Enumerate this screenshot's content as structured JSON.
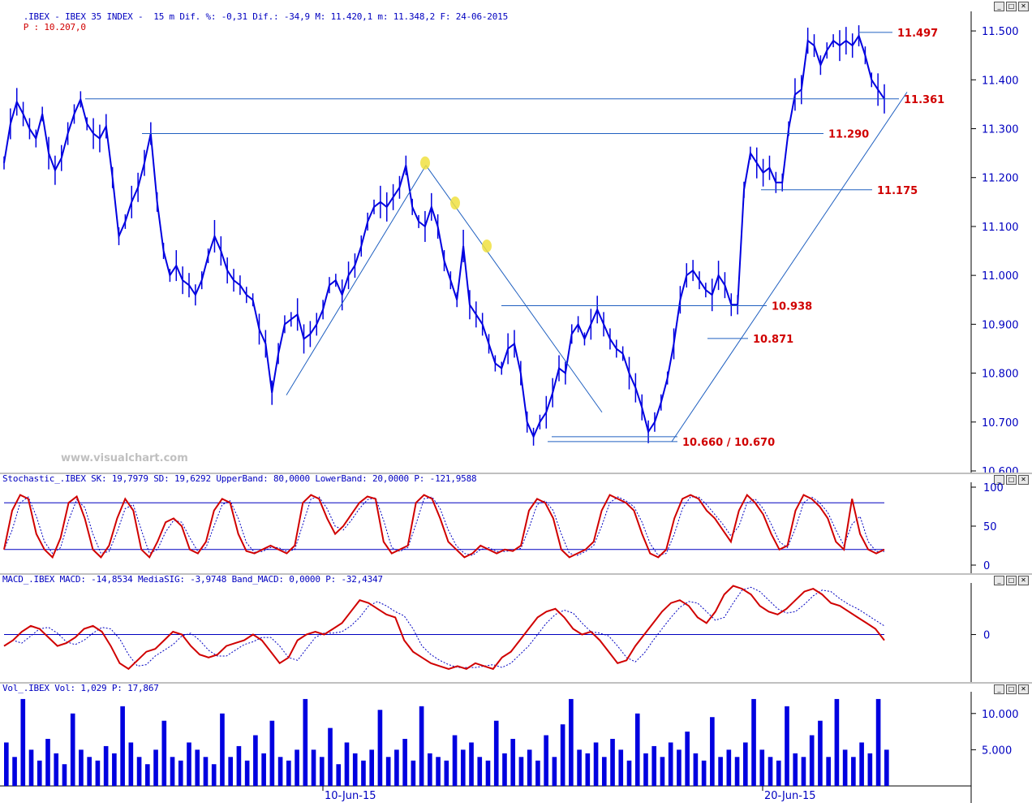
{
  "header": {
    "title": ".IBEX - IBEX 35 INDEX -  15 m Dif. %: -0,31 Dif.: -34,9 M: 11.420,1 m: 11.348,2 F: 24-06-2015",
    "price": "P : 10.207,0"
  },
  "watermark": "www.visualchart.com",
  "colors": {
    "price": "#0000e0",
    "indicator": "#d00000",
    "guide": "#2060c0",
    "level_text": "#d00000",
    "marker": "#f0e040"
  },
  "chart_data": [
    {
      "type": "line",
      "name": "price",
      "ylim": [
        10600,
        11540
      ],
      "y_ticks": [
        "11.500",
        "11.400",
        "11.300",
        "11.200",
        "11.100",
        "11.000",
        "10.900",
        "10.800",
        "10.700",
        "10.600"
      ],
      "x_labels": [
        "10-Jun-15",
        "20-Jun-15"
      ],
      "series": [
        {
          "values": [
            11230,
            11310,
            11355,
            11330,
            11300,
            11280,
            11330,
            11250,
            11215,
            11240,
            11290,
            11330,
            11360,
            11310,
            11290,
            11280,
            11305,
            11200,
            11080,
            11110,
            11150,
            11180,
            11230,
            11290,
            11150,
            11050,
            11000,
            11020,
            10990,
            10980,
            10960,
            10990,
            11040,
            11080,
            11050,
            11010,
            10990,
            10980,
            10960,
            10950,
            10890,
            10860,
            10760,
            10840,
            10900,
            10910,
            10920,
            10870,
            10880,
            10900,
            10930,
            10980,
            10990,
            10960,
            11000,
            11020,
            11060,
            11110,
            11140,
            11150,
            11140,
            11160,
            11180,
            11225,
            11140,
            11110,
            11100,
            11140,
            11100,
            11030,
            10990,
            10950,
            11060,
            10940,
            10920,
            10900,
            10860,
            10820,
            10810,
            10850,
            10860,
            10800,
            10700,
            10670,
            10700,
            10720,
            10760,
            10810,
            10800,
            10880,
            10900,
            10870,
            10900,
            10930,
            10900,
            10870,
            10850,
            10840,
            10800,
            10770,
            10730,
            10680,
            10700,
            10740,
            10790,
            10860,
            10950,
            11000,
            11010,
            10990,
            10970,
            10960,
            11000,
            10980,
            10940,
            10940,
            11175,
            11250,
            11230,
            11210,
            11220,
            11190,
            11190,
            11300,
            11370,
            11380,
            11480,
            11470,
            11430,
            11460,
            11480,
            11470,
            11480,
            11470,
            11490,
            11450,
            11400,
            11380,
            11361
          ],
          "x_start": "",
          "x_end": ""
        }
      ],
      "levels": [
        {
          "label": "11.497",
          "value": 11497
        },
        {
          "label": "11.361",
          "value": 11361
        },
        {
          "label": "11.290",
          "value": 11290
        },
        {
          "label": "11.175",
          "value": 11175
        },
        {
          "label": "10.938",
          "value": 10938
        },
        {
          "label": "10.871",
          "value": 10871
        },
        {
          "label": "10.660 / 10.670",
          "value": 10660
        }
      ]
    },
    {
      "type": "line",
      "name": "stochastic",
      "title": "Stochastic_.IBEX SK: 19,7979 SD: 19,6292 UpperBand: 80,0000 LowerBand: 20,0000 P: -121,9588",
      "ylim": [
        0,
        100
      ],
      "y_ticks": [
        "100",
        "50",
        "0"
      ],
      "bands": [
        80,
        20
      ],
      "series": [
        {
          "values": [
            20,
            70,
            90,
            85,
            40,
            20,
            10,
            35,
            80,
            88,
            60,
            20,
            10,
            25,
            60,
            85,
            70,
            20,
            10,
            30,
            55,
            60,
            50,
            20,
            15,
            30,
            70,
            85,
            80,
            40,
            18,
            15,
            20,
            25,
            20,
            15,
            25,
            80,
            90,
            85,
            60,
            40,
            50,
            65,
            80,
            88,
            85,
            30,
            15,
            20,
            25,
            80,
            90,
            85,
            60,
            30,
            20,
            10,
            15,
            25,
            20,
            15,
            20,
            18,
            25,
            70,
            85,
            80,
            60,
            20,
            10,
            15,
            20,
            30,
            70,
            90,
            85,
            80,
            70,
            40,
            15,
            10,
            20,
            60,
            85,
            90,
            85,
            70,
            60,
            45,
            30,
            70,
            90,
            80,
            65,
            40,
            20,
            25,
            70,
            90,
            85,
            75,
            60,
            30,
            20,
            85,
            40,
            20,
            15,
            20
          ]
        }
      ]
    },
    {
      "type": "line",
      "name": "macd",
      "title": "MACD_.IBEX MACD: -14,8534 MediaSIG: -3,9748 Band_MACD: 0,0000 P: -32,4347",
      "ylim": [
        -80,
        90
      ],
      "y_ticks": [
        "0"
      ],
      "series": [
        {
          "values": [
            -20,
            -10,
            5,
            15,
            10,
            -5,
            -20,
            -15,
            -5,
            10,
            15,
            5,
            -20,
            -50,
            -60,
            -45,
            -30,
            -25,
            -10,
            5,
            0,
            -20,
            -35,
            -40,
            -35,
            -20,
            -15,
            -10,
            0,
            -10,
            -30,
            -50,
            -40,
            -10,
            0,
            5,
            0,
            10,
            20,
            40,
            60,
            55,
            45,
            35,
            30,
            -10,
            -30,
            -40,
            -50,
            -55,
            -60,
            -55,
            -60,
            -50,
            -55,
            -60,
            -40,
            -30,
            -10,
            10,
            30,
            40,
            45,
            30,
            10,
            0,
            5,
            -10,
            -30,
            -50,
            -45,
            -20,
            0,
            20,
            40,
            55,
            60,
            50,
            30,
            20,
            40,
            70,
            85,
            80,
            70,
            50,
            40,
            35,
            45,
            60,
            75,
            80,
            70,
            55,
            50,
            40,
            30,
            20,
            10,
            -10
          ]
        }
      ]
    },
    {
      "type": "bar",
      "name": "volume",
      "title": "Vol_.IBEX Vol: 1,029 P: 17,867",
      "ylim": [
        0,
        13000
      ],
      "y_ticks": [
        "10.000",
        "5.000"
      ],
      "series": [
        {
          "values": [
            6000,
            4000,
            12000,
            5000,
            3500,
            6500,
            4500,
            3000,
            10000,
            5000,
            4000,
            3500,
            5500,
            4500,
            11000,
            6000,
            4000,
            3000,
            5000,
            9000,
            4000,
            3500,
            6000,
            5000,
            4000,
            3000,
            10000,
            4000,
            5500,
            3500,
            7000,
            4500,
            9000,
            4000,
            3500,
            5000,
            12000,
            5000,
            4000,
            8000,
            3000,
            6000,
            4500,
            3500,
            5000,
            10500,
            4000,
            5000,
            6500,
            3500,
            11000,
            4500,
            4000,
            3500,
            7000,
            5000,
            6000,
            4000,
            3500,
            9000,
            4500,
            6500,
            4000,
            5000,
            3500,
            7000,
            4000,
            8500,
            12000,
            5000,
            4500,
            6000,
            4000,
            6500,
            5000,
            3500,
            10000,
            4500,
            5500,
            4000,
            6000,
            5000,
            7500,
            4500,
            3500,
            9500,
            4000,
            5000,
            4000,
            6000,
            12000,
            5000,
            4000,
            3500,
            11000,
            4500,
            4000,
            7000,
            9000,
            4000,
            12000,
            5000,
            4000,
            6000,
            4500,
            12000,
            5000
          ]
        }
      ]
    }
  ]
}
